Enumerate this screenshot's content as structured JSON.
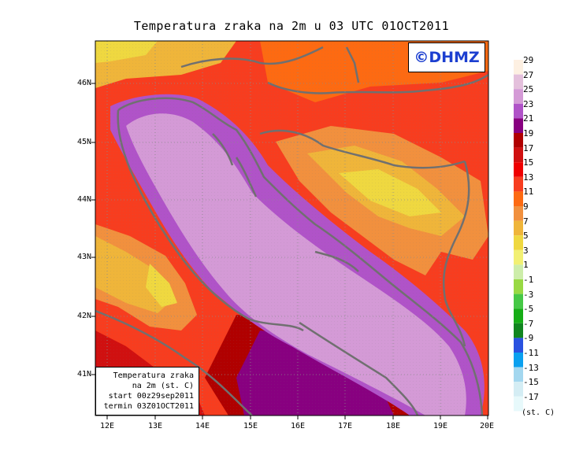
{
  "title": "Temperatura zraka na 2m u 03 UTC 01OCT2011",
  "copyright": "©DHMZ",
  "info_box": {
    "line1": "Temperatura zraka",
    "line2": "na 2m (st. C)",
    "line3": "start 00z29sep2011",
    "line4": "termin 03Z01OCT2011"
  },
  "axes": {
    "lat_labels": [
      "46N",
      "45N",
      "44N",
      "43N",
      "42N",
      "41N"
    ],
    "lon_labels": [
      "12E",
      "13E",
      "14E",
      "15E",
      "16E",
      "17E",
      "18E",
      "19E",
      "20E"
    ]
  },
  "legend": {
    "unit": "(st. C)",
    "labels": [
      "29",
      "27",
      "25",
      "23",
      "21",
      "19",
      "17",
      "15",
      "13",
      "11",
      "9",
      "7",
      "5",
      "3",
      "1",
      "-1",
      "-3",
      "-5",
      "-7",
      "-9",
      "-11",
      "-13",
      "-15",
      "-17"
    ],
    "colors": [
      "#fdf0e2",
      "#e4c0dc",
      "#d49ad6",
      "#b053c8",
      "#880080",
      "#b00000",
      "#d01010",
      "#ef0000",
      "#f73d1f",
      "#fd6a12",
      "#f1903e",
      "#efb53a",
      "#efd840",
      "#f2f073",
      "#cdedaa",
      "#98d943",
      "#46c846",
      "#16ad16",
      "#11851f",
      "#2a52e0",
      "#0aa0ef",
      "#a3d7ef",
      "#d4edf4",
      "#e7f9fb"
    ]
  }
}
